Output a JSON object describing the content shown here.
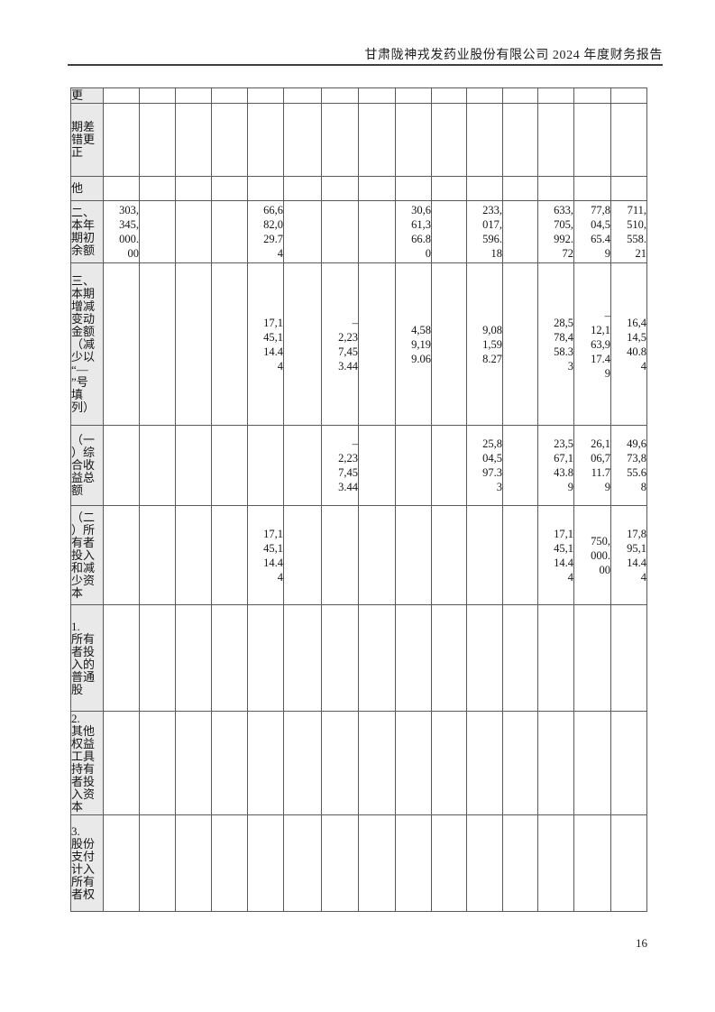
{
  "header": {
    "title": "甘肃陇神戎发药业股份有限公司 2024 年度财务报告"
  },
  "page_number": "16",
  "table": {
    "rows": [
      {
        "label": "更",
        "cells": [
          "",
          "",
          "",
          "",
          "",
          "",
          "",
          "",
          "",
          "",
          "",
          "",
          "",
          "",
          ""
        ]
      },
      {
        "label": "期差\n错更\n正",
        "cells": [
          "",
          "",
          "",
          "",
          "",
          "",
          "",
          "",
          "",
          "",
          "",
          "",
          "",
          "",
          ""
        ]
      },
      {
        "label": "他",
        "cells": [
          "",
          "",
          "",
          "",
          "",
          "",
          "",
          "",
          "",
          "",
          "",
          "",
          "",
          "",
          ""
        ]
      },
      {
        "label": "二、\n本年\n期初\n余额",
        "cells": [
          "303,\n345,\n000.\n00",
          "",
          "",
          "",
          "66,6\n82,0\n29.7\n4",
          "",
          "",
          "",
          "30,6\n61,3\n66.8\n0",
          "",
          "233,\n017,\n596.\n18",
          "",
          "633,\n705,\n992.\n72",
          "77,8\n04,5\n65.4\n9",
          "711,\n510,\n558.\n21"
        ]
      },
      {
        "label": "三、\n本期\n增减\n变动\n金额\n（减\n少以\n“—\n”号\n填\n列）",
        "cells": [
          "",
          "",
          "",
          "",
          "17,1\n45,1\n14.4\n4",
          "",
          "–\n2,23\n7,45\n3.44",
          "",
          "4,58\n9,19\n9.06",
          "",
          "9,08\n1,59\n8.27",
          "",
          "28,5\n78,4\n58.3\n3",
          "–\n12,1\n63,9\n17.4\n9",
          "16,4\n14,5\n40.8\n4"
        ]
      },
      {
        "label": "（一\n）综\n合收\n益总\n额",
        "cells": [
          "",
          "",
          "",
          "",
          "",
          "",
          "–\n2,23\n7,45\n3.44",
          "",
          "",
          "",
          "25,8\n04,5\n97.3\n3",
          "",
          "23,5\n67,1\n43.8\n9",
          "26,1\n06,7\n11.7\n9",
          "49,6\n73,8\n55.6\n8"
        ]
      },
      {
        "label": "（二\n）所\n有者\n投入\n和减\n少资\n本",
        "cells": [
          "",
          "",
          "",
          "",
          "17,1\n45,1\n14.4\n4",
          "",
          "",
          "",
          "",
          "",
          "",
          "",
          "17,1\n45,1\n14.4\n4",
          "750,\n000.\n00",
          "17,8\n95,1\n14.4\n4"
        ]
      },
      {
        "label": "1.\n所有\n者投\n入的\n普通\n股",
        "cells": [
          "",
          "",
          "",
          "",
          "",
          "",
          "",
          "",
          "",
          "",
          "",
          "",
          "",
          "",
          ""
        ]
      },
      {
        "label": "2.\n其他\n权益\n工具\n持有\n者投\n入资\n本",
        "cells": [
          "",
          "",
          "",
          "",
          "",
          "",
          "",
          "",
          "",
          "",
          "",
          "",
          "",
          "",
          ""
        ]
      },
      {
        "label": "3.\n股份\n支付\n计入\n所有\n者权",
        "cells": [
          "",
          "",
          "",
          "",
          "",
          "",
          "",
          "",
          "",
          "",
          "",
          "",
          "",
          "",
          ""
        ]
      }
    ]
  }
}
